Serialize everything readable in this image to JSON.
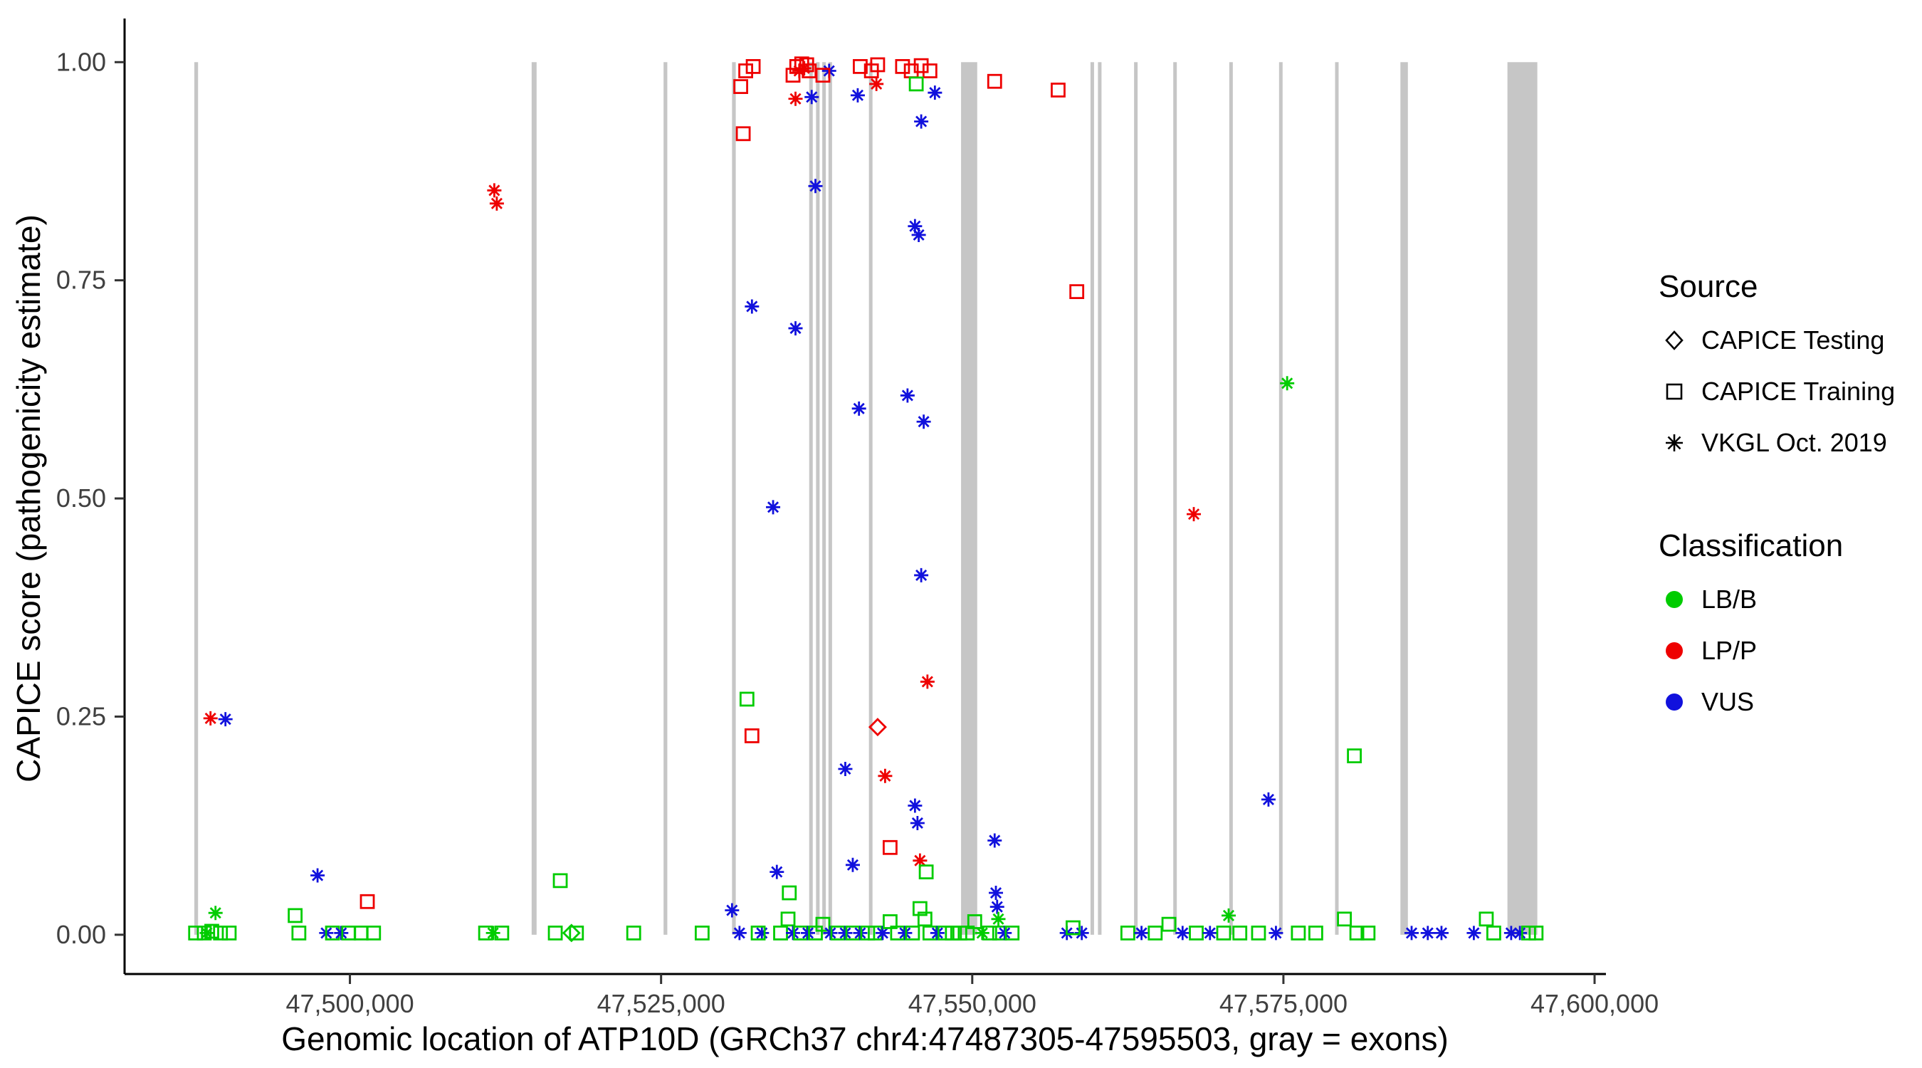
{
  "figure": {
    "background": "#ffffff",
    "axis_line_color": "#000000",
    "tick_label_color": "#404040"
  },
  "legend": {
    "source": {
      "title": "Source",
      "items": [
        {
          "label": "CAPICE Testing",
          "shape": "diamond"
        },
        {
          "label": "CAPICE Training",
          "shape": "square"
        },
        {
          "label": "VKGL Oct. 2019",
          "shape": "asterisk"
        }
      ]
    },
    "classification": {
      "title": "Classification",
      "items": [
        {
          "label": "LB/B",
          "color_key": "B"
        },
        {
          "label": "LP/P",
          "color_key": "P"
        },
        {
          "label": "VUS",
          "color_key": "U"
        }
      ]
    }
  },
  "chart_data": {
    "type": "scatter",
    "title": "",
    "xlabel": "Genomic location of ATP10D (GRCh37 chr4:47487305-47595503, gray = exons)",
    "ylabel": "CAPICE score (pathogenicity estimate)",
    "xlim": [
      47481895,
      47600913
    ],
    "ylim": [
      -0.045,
      1.05
    ],
    "xticks": [
      47500000,
      47525000,
      47550000,
      47575000,
      47600000
    ],
    "xtick_labels": [
      "47,500,000",
      "47,525,000",
      "47,550,000",
      "47,575,000",
      "47,600,000"
    ],
    "yticks": [
      0,
      0.25,
      0.5,
      0.75,
      1.0
    ],
    "ytick_labels": [
      "0.00",
      "0.25",
      "0.50",
      "0.75",
      "1.00"
    ],
    "grid": false,
    "legend_position": "right",
    "exon_color": "#C6C6C6",
    "colors": {
      "B": "#00CC00",
      "P": "#EE0000",
      "U": "#1111DD"
    },
    "class_names": {
      "B": "LB/B",
      "P": "LP/P",
      "U": "VUS"
    },
    "source_names": {
      "te": "CAPICE Testing",
      "tr": "CAPICE Training",
      "vk": "VKGL Oct. 2019"
    },
    "exons": [
      [
        47487500,
        47487800
      ],
      [
        47514600,
        47515000
      ],
      [
        47525200,
        47525500
      ],
      [
        47530700,
        47531000
      ],
      [
        47536900,
        47537150
      ],
      [
        47537450,
        47537700
      ],
      [
        47537950,
        47538200
      ],
      [
        47538450,
        47538700
      ],
      [
        47541700,
        47541950
      ],
      [
        47549100,
        47550400
      ],
      [
        47559500,
        47559750
      ],
      [
        47560100,
        47560350
      ],
      [
        47563000,
        47563250
      ],
      [
        47566150,
        47566400
      ],
      [
        47570650,
        47570900
      ],
      [
        47574650,
        47574900
      ],
      [
        47579150,
        47579400
      ],
      [
        47584400,
        47585000
      ],
      [
        47593000,
        47595400
      ]
    ],
    "points_format": [
      "genomic_position",
      "capice_score",
      "source (te=CAPICE Testing diamond, tr=CAPICE Training square, vk=VKGL Oct. 2019 asterisk)",
      "classification (B=LB/B, P=LP/P, U=VUS)"
    ],
    "points": [
      [
        47487600,
        0.002,
        "tr",
        "B"
      ],
      [
        47488300,
        0.002,
        "tr",
        "B"
      ],
      [
        47488900,
        0.004,
        "tr",
        "B"
      ],
      [
        47489600,
        0.002,
        "tr",
        "B"
      ],
      [
        47490300,
        0.002,
        "tr",
        "B"
      ],
      [
        47488500,
        0.002,
        "vk",
        "B"
      ],
      [
        47489200,
        0.025,
        "vk",
        "B"
      ],
      [
        47488800,
        0.248,
        "vk",
        "P"
      ],
      [
        47490000,
        0.247,
        "vk",
        "U"
      ],
      [
        47495600,
        0.022,
        "tr",
        "B"
      ],
      [
        47495900,
        0.002,
        "tr",
        "B"
      ],
      [
        47497400,
        0.068,
        "vk",
        "U"
      ],
      [
        47498100,
        0.002,
        "vk",
        "U"
      ],
      [
        47498600,
        0.002,
        "tr",
        "B"
      ],
      [
        47499300,
        0.002,
        "vk",
        "U"
      ],
      [
        47499900,
        0.002,
        "tr",
        "B"
      ],
      [
        47500900,
        0.002,
        "tr",
        "B"
      ],
      [
        47501900,
        0.002,
        "tr",
        "B"
      ],
      [
        47501400,
        0.038,
        "tr",
        "P"
      ],
      [
        47510900,
        0.002,
        "tr",
        "B"
      ],
      [
        47512200,
        0.002,
        "tr",
        "B"
      ],
      [
        47511500,
        0.002,
        "vk",
        "B"
      ],
      [
        47511600,
        0.853,
        "vk",
        "P"
      ],
      [
        47511800,
        0.838,
        "vk",
        "P"
      ],
      [
        47516900,
        0.062,
        "tr",
        "B"
      ],
      [
        47516500,
        0.002,
        "tr",
        "B"
      ],
      [
        47517800,
        0.002,
        "te",
        "B"
      ],
      [
        47518200,
        0.002,
        "tr",
        "B"
      ],
      [
        47522800,
        0.002,
        "tr",
        "B"
      ],
      [
        47528300,
        0.002,
        "tr",
        "B"
      ],
      [
        47530700,
        0.028,
        "vk",
        "U"
      ],
      [
        47531600,
        0.918,
        "tr",
        "P"
      ],
      [
        47531400,
        0.972,
        "tr",
        "P"
      ],
      [
        47531800,
        0.99,
        "tr",
        "P"
      ],
      [
        47532400,
        0.995,
        "tr",
        "P"
      ],
      [
        47532300,
        0.228,
        "tr",
        "P"
      ],
      [
        47531900,
        0.27,
        "tr",
        "B"
      ],
      [
        47532300,
        0.72,
        "vk",
        "U"
      ],
      [
        47531300,
        0.002,
        "vk",
        "U"
      ],
      [
        47533100,
        0.002,
        "vk",
        "U"
      ],
      [
        47532800,
        0.002,
        "tr",
        "B"
      ],
      [
        47534000,
        0.49,
        "vk",
        "U"
      ],
      [
        47534300,
        0.072,
        "vk",
        "U"
      ],
      [
        47534600,
        0.002,
        "tr",
        "B"
      ],
      [
        47535300,
        0.048,
        "tr",
        "B"
      ],
      [
        47535200,
        0.018,
        "tr",
        "B"
      ],
      [
        47535800,
        0.695,
        "vk",
        "U"
      ],
      [
        47535600,
        0.002,
        "vk",
        "U"
      ],
      [
        47535600,
        0.985,
        "tr",
        "P"
      ],
      [
        47535900,
        0.995,
        "tr",
        "P"
      ],
      [
        47536100,
        0.99,
        "vk",
        "P"
      ],
      [
        47536300,
        0.998,
        "tr",
        "P"
      ],
      [
        47536500,
        0.993,
        "vk",
        "P"
      ],
      [
        47536700,
        0.997,
        "tr",
        "P"
      ],
      [
        47536900,
        0.99,
        "tr",
        "P"
      ],
      [
        47535800,
        0.958,
        "vk",
        "P"
      ],
      [
        47537100,
        0.96,
        "vk",
        "U"
      ],
      [
        47537400,
        0.858,
        "vk",
        "U"
      ],
      [
        47538500,
        0.99,
        "vk",
        "U"
      ],
      [
        47538000,
        0.985,
        "tr",
        "P"
      ],
      [
        47536200,
        0.002,
        "tr",
        "B"
      ],
      [
        47536800,
        0.002,
        "vk",
        "U"
      ],
      [
        47537400,
        0.002,
        "tr",
        "B"
      ],
      [
        47538000,
        0.012,
        "tr",
        "B"
      ],
      [
        47538600,
        0.002,
        "vk",
        "U"
      ],
      [
        47539200,
        0.002,
        "tr",
        "B"
      ],
      [
        47539800,
        0.002,
        "vk",
        "U"
      ],
      [
        47540400,
        0.002,
        "tr",
        "B"
      ],
      [
        47541000,
        0.002,
        "vk",
        "U"
      ],
      [
        47541600,
        0.002,
        "tr",
        "B"
      ],
      [
        47542200,
        0.002,
        "tr",
        "B"
      ],
      [
        47542800,
        0.002,
        "vk",
        "U"
      ],
      [
        47543400,
        0.015,
        "tr",
        "B"
      ],
      [
        47544000,
        0.002,
        "tr",
        "B"
      ],
      [
        47544600,
        0.002,
        "vk",
        "U"
      ],
      [
        47545200,
        0.002,
        "tr",
        "B"
      ],
      [
        47545800,
        0.03,
        "tr",
        "B"
      ],
      [
        47546200,
        0.018,
        "tr",
        "B"
      ],
      [
        47546600,
        0.002,
        "tr",
        "B"
      ],
      [
        47547200,
        0.002,
        "vk",
        "U"
      ],
      [
        47547800,
        0.002,
        "tr",
        "B"
      ],
      [
        47548400,
        0.002,
        "tr",
        "B"
      ],
      [
        47539800,
        0.19,
        "vk",
        "U"
      ],
      [
        47540400,
        0.08,
        "vk",
        "U"
      ],
      [
        47540900,
        0.603,
        "vk",
        "U"
      ],
      [
        47540800,
        0.962,
        "vk",
        "U"
      ],
      [
        47541000,
        0.995,
        "tr",
        "P"
      ],
      [
        47541900,
        0.99,
        "tr",
        "P"
      ],
      [
        47542400,
        0.997,
        "tr",
        "P"
      ],
      [
        47542300,
        0.975,
        "vk",
        "P"
      ],
      [
        47542400,
        0.238,
        "te",
        "P"
      ],
      [
        47543000,
        0.182,
        "vk",
        "P"
      ],
      [
        47543400,
        0.1,
        "tr",
        "P"
      ],
      [
        47544800,
        0.618,
        "vk",
        "U"
      ],
      [
        47545400,
        0.812,
        "vk",
        "U"
      ],
      [
        47545700,
        0.802,
        "vk",
        "U"
      ],
      [
        47545900,
        0.932,
        "vk",
        "U"
      ],
      [
        47544400,
        0.995,
        "tr",
        "P"
      ],
      [
        47545100,
        0.99,
        "tr",
        "P"
      ],
      [
        47545900,
        0.996,
        "tr",
        "P"
      ],
      [
        47546600,
        0.99,
        "tr",
        "P"
      ],
      [
        47545500,
        0.975,
        "tr",
        "B"
      ],
      [
        47547000,
        0.965,
        "vk",
        "U"
      ],
      [
        47546100,
        0.588,
        "vk",
        "U"
      ],
      [
        47545900,
        0.412,
        "vk",
        "U"
      ],
      [
        47546400,
        0.29,
        "vk",
        "P"
      ],
      [
        47545400,
        0.148,
        "vk",
        "U"
      ],
      [
        47545600,
        0.128,
        "vk",
        "U"
      ],
      [
        47545800,
        0.085,
        "vk",
        "P"
      ],
      [
        47546300,
        0.072,
        "tr",
        "B"
      ],
      [
        47549000,
        0.002,
        "tr",
        "B"
      ],
      [
        47549600,
        0.002,
        "tr",
        "B"
      ],
      [
        47550200,
        0.015,
        "tr",
        "B"
      ],
      [
        47550800,
        0.002,
        "vk",
        "B"
      ],
      [
        47551400,
        0.002,
        "tr",
        "B"
      ],
      [
        47551800,
        0.108,
        "vk",
        "U"
      ],
      [
        47551900,
        0.048,
        "vk",
        "U"
      ],
      [
        47552000,
        0.032,
        "vk",
        "U"
      ],
      [
        47552100,
        0.018,
        "vk",
        "B"
      ],
      [
        47552200,
        0.002,
        "tr",
        "B"
      ],
      [
        47552600,
        0.002,
        "vk",
        "U"
      ],
      [
        47553200,
        0.002,
        "tr",
        "B"
      ],
      [
        47551800,
        0.978,
        "tr",
        "P"
      ],
      [
        47556900,
        0.968,
        "tr",
        "P"
      ],
      [
        47558400,
        0.737,
        "tr",
        "P"
      ],
      [
        47557600,
        0.002,
        "vk",
        "U"
      ],
      [
        47558800,
        0.002,
        "vk",
        "U"
      ],
      [
        47558100,
        0.008,
        "tr",
        "B"
      ],
      [
        47562500,
        0.002,
        "tr",
        "B"
      ],
      [
        47563600,
        0.002,
        "vk",
        "U"
      ],
      [
        47564700,
        0.002,
        "tr",
        "B"
      ],
      [
        47565800,
        0.012,
        "tr",
        "B"
      ],
      [
        47566900,
        0.002,
        "vk",
        "U"
      ],
      [
        47568000,
        0.002,
        "tr",
        "B"
      ],
      [
        47569100,
        0.002,
        "vk",
        "U"
      ],
      [
        47570200,
        0.002,
        "tr",
        "B"
      ],
      [
        47567800,
        0.482,
        "vk",
        "P"
      ],
      [
        47570600,
        0.022,
        "vk",
        "B"
      ],
      [
        47571500,
        0.002,
        "tr",
        "B"
      ],
      [
        47573800,
        0.155,
        "vk",
        "U"
      ],
      [
        47575300,
        0.632,
        "vk",
        "B"
      ],
      [
        47574400,
        0.002,
        "vk",
        "U"
      ],
      [
        47573000,
        0.002,
        "tr",
        "B"
      ],
      [
        47576200,
        0.002,
        "tr",
        "B"
      ],
      [
        47577600,
        0.002,
        "tr",
        "B"
      ],
      [
        47580700,
        0.205,
        "tr",
        "B"
      ],
      [
        47579900,
        0.018,
        "tr",
        "B"
      ],
      [
        47580900,
        0.002,
        "tr",
        "B"
      ],
      [
        47581800,
        0.002,
        "tr",
        "B"
      ],
      [
        47585300,
        0.002,
        "vk",
        "U"
      ],
      [
        47586600,
        0.002,
        "vk",
        "U"
      ],
      [
        47587700,
        0.002,
        "vk",
        "U"
      ],
      [
        47590300,
        0.002,
        "vk",
        "U"
      ],
      [
        47591300,
        0.018,
        "tr",
        "B"
      ],
      [
        47591900,
        0.002,
        "tr",
        "B"
      ],
      [
        47593300,
        0.002,
        "vk",
        "U"
      ],
      [
        47594000,
        0.002,
        "vk",
        "U"
      ],
      [
        47594700,
        0.002,
        "tr",
        "B"
      ],
      [
        47595300,
        0.002,
        "tr",
        "B"
      ]
    ]
  }
}
